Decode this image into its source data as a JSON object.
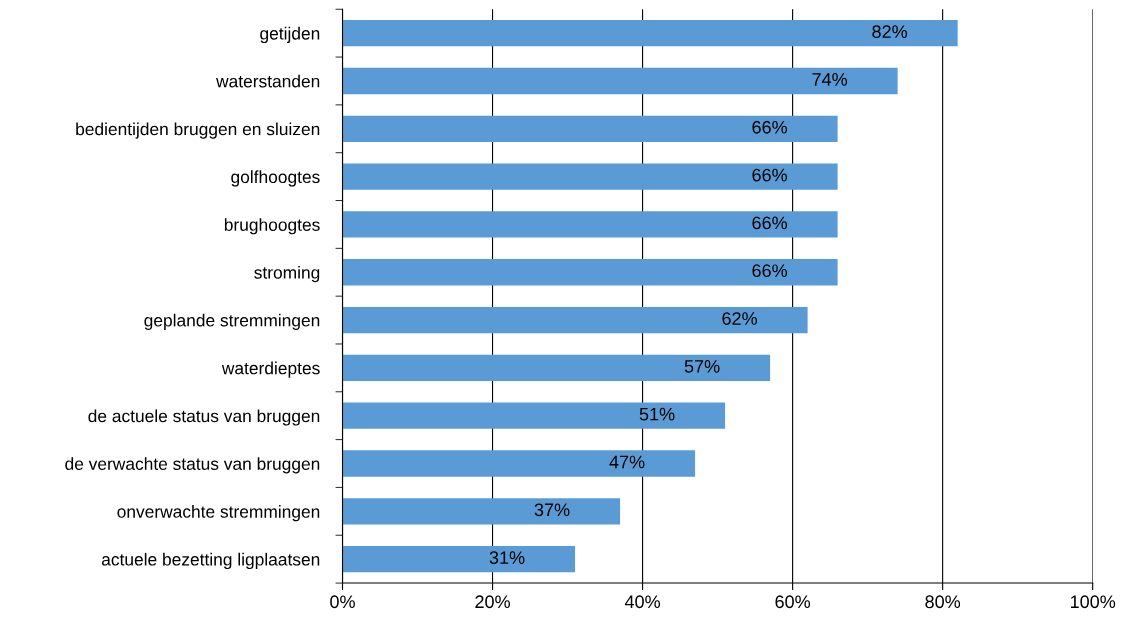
{
  "chart_data": {
    "type": "bar",
    "orientation": "horizontal",
    "categories": [
      "getijden",
      "waterstanden",
      "bedientijden bruggen en sluizen",
      "golfhoogtes",
      "brughoogtes",
      "stroming",
      "geplande stremmingen",
      "waterdieptes",
      "de actuele status van bruggen",
      "de verwachte status van bruggen",
      "onverwachte stremmingen",
      "actuele bezetting ligplaatsen"
    ],
    "values": [
      82,
      74,
      66,
      66,
      66,
      66,
      62,
      57,
      51,
      47,
      37,
      31
    ],
    "value_labels": [
      "82%",
      "74%",
      "66%",
      "66%",
      "66%",
      "66%",
      "62%",
      "57%",
      "51%",
      "47%",
      "37%",
      "31%"
    ],
    "color": "#5b9bd5",
    "xlim": [
      0,
      100
    ],
    "xticks": [
      {
        "value": 0,
        "label": "0%"
      },
      {
        "value": 20,
        "label": "20%"
      },
      {
        "value": 40,
        "label": "40%"
      },
      {
        "value": 60,
        "label": "60%"
      },
      {
        "value": 80,
        "label": "80%"
      },
      {
        "value": 100,
        "label": "100%"
      }
    ],
    "grid": "x",
    "legend": false
  }
}
